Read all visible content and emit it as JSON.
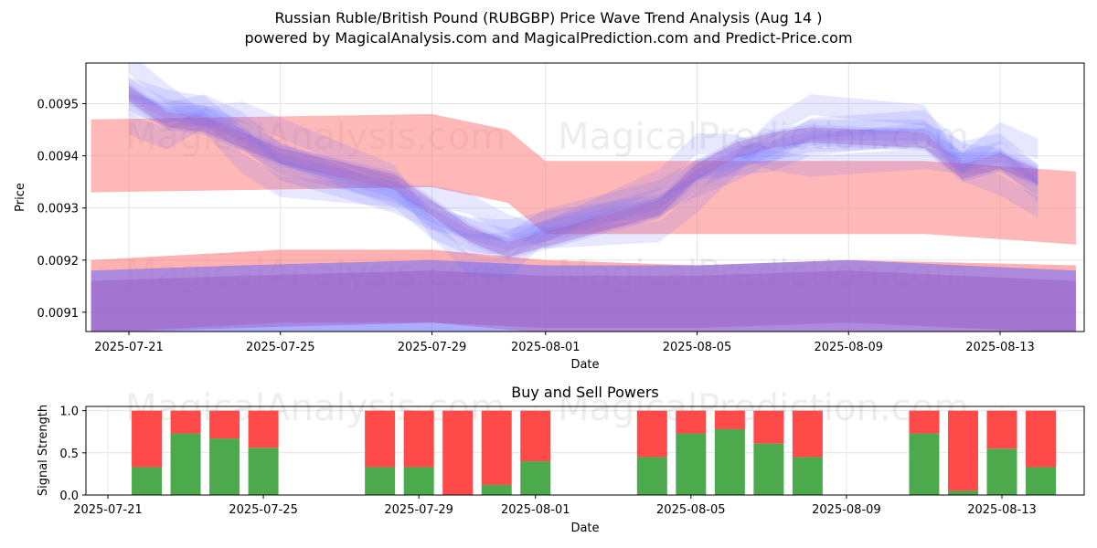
{
  "title_line1": "Russian Ruble/British Pound (RUBGBP) Price Wave Trend Analysis (Aug 14 )",
  "title_line2": "powered by MagicalAnalysis.com and MagicalPrediction.com and Predict-Price.com",
  "watermarks": [
    "MagicalAnalysis.com",
    "MagicalPrediction.com"
  ],
  "colors": {
    "buy": "#4caa4c",
    "sell": "#ff4a4a",
    "wave_blue": "#6a6aff",
    "wave_red": "#ff7d7d",
    "overlap": "#9a5ac0"
  },
  "chart_data": [
    {
      "type": "area",
      "xlabel": "Date",
      "ylabel": "Price",
      "x_tick_labels": [
        "2025-07-21",
        "2025-07-25",
        "2025-07-29",
        "2025-08-01",
        "2025-08-05",
        "2025-08-09",
        "2025-08-13"
      ],
      "y_tick_labels": [
        "0.0091",
        "0.0092",
        "0.0093",
        "0.0094",
        "0.0095"
      ],
      "ylim": [
        0.009063,
        0.009578
      ],
      "grid": true,
      "series": [
        {
          "x": [
            "2025-07-21",
            "2025-07-22",
            "2025-07-23",
            "2025-07-24",
            "2025-07-25",
            "2025-07-28",
            "2025-07-29",
            "2025-07-30",
            "2025-07-31",
            "2025-08-01",
            "2025-08-04",
            "2025-08-05",
            "2025-08-06",
            "2025-08-07",
            "2025-08-08",
            "2025-08-11",
            "2025-08-12",
            "2025-08-13",
            "2025-08-14"
          ],
          "values": [
            0.00952,
            0.00947,
            0.00946,
            0.00943,
            0.0094,
            0.00935,
            0.0093,
            0.00925,
            0.00922,
            0.00924,
            0.0093,
            0.00937,
            0.00941,
            0.00943,
            0.00944,
            0.00943,
            0.00937,
            0.00939,
            0.00936
          ]
        },
        {
          "x": [
            "2025-07-20",
            "2025-07-29",
            "2025-07-31",
            "2025-08-01",
            "2025-08-07",
            "2025-08-11",
            "2025-08-15"
          ],
          "values": [
            0.0094,
            0.00941,
            0.00938,
            0.00932,
            0.00932,
            0.00932,
            0.0093
          ]
        },
        {
          "x": [
            "2025-07-20",
            "2025-07-25",
            "2025-07-29",
            "2025-08-01",
            "2025-08-05",
            "2025-08-09",
            "2025-08-15"
          ],
          "values": [
            0.00913,
            0.00915,
            0.00915,
            0.00913,
            0.00912,
            0.00913,
            0.00912
          ]
        },
        {
          "x": [
            "2025-07-20",
            "2025-07-24",
            "2025-07-29",
            "2025-08-01",
            "2025-08-05",
            "2025-08-09",
            "2025-08-15"
          ],
          "values": [
            0.00911,
            0.00912,
            0.00913,
            0.00912,
            0.00912,
            0.00913,
            0.00911
          ]
        }
      ]
    },
    {
      "type": "bar",
      "title": "Buy and Sell Powers",
      "xlabel": "Date",
      "ylabel": "Signal Strength",
      "ylim": [
        0,
        1.05
      ],
      "x_tick_labels": [
        "2025-07-21",
        "2025-07-25",
        "2025-07-29",
        "2025-08-01",
        "2025-08-05",
        "2025-08-09",
        "2025-08-13"
      ],
      "y_tick_labels": [
        "0.0",
        "0.5",
        "1.0"
      ],
      "categories": [
        "2025-07-22",
        "2025-07-23",
        "2025-07-24",
        "2025-07-25",
        "2025-07-28",
        "2025-07-29",
        "2025-07-30",
        "2025-07-31",
        "2025-08-01",
        "2025-08-04",
        "2025-08-05",
        "2025-08-06",
        "2025-08-07",
        "2025-08-08",
        "2025-08-11",
        "2025-08-12",
        "2025-08-13",
        "2025-08-14"
      ],
      "series": [
        {
          "values": [
            0.33,
            0.73,
            0.67,
            0.56,
            0.33,
            0.33,
            0.0,
            0.12,
            0.4,
            0.45,
            0.73,
            0.78,
            0.61,
            0.45,
            0.73,
            0.05,
            0.55,
            0.33
          ]
        },
        {
          "values": [
            0.67,
            0.27,
            0.33,
            0.44,
            0.67,
            0.67,
            1.0,
            0.88,
            0.6,
            0.55,
            0.27,
            0.22,
            0.39,
            0.55,
            0.27,
            0.95,
            0.45,
            0.67
          ]
        }
      ]
    }
  ]
}
